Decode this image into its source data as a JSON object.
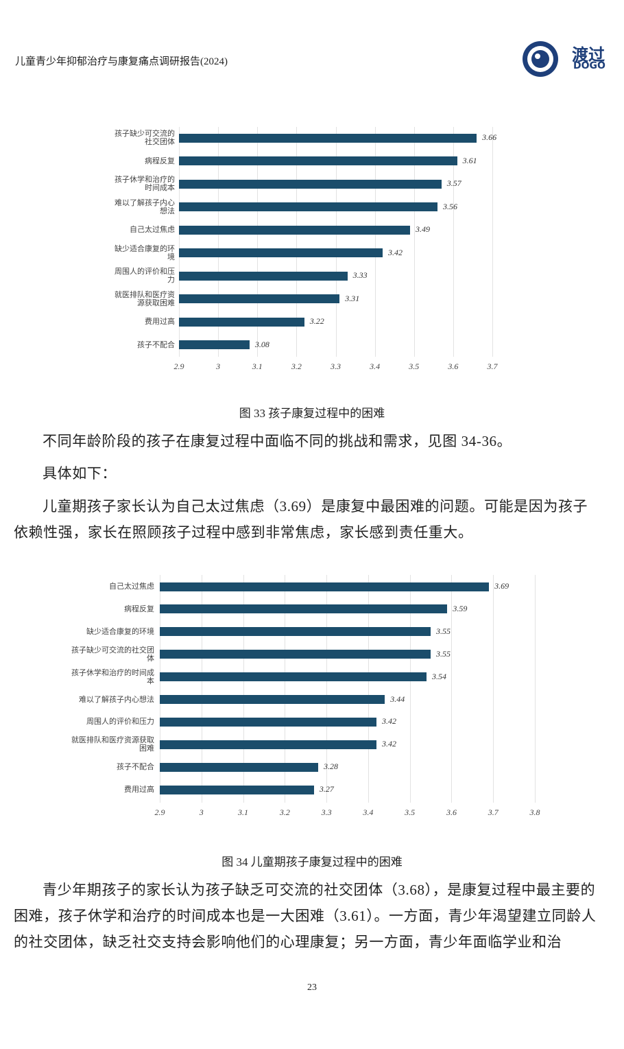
{
  "header": {
    "title": "儿童青少年抑郁治疗与康复痛点调研报告(2024)",
    "logo_text": "渡过",
    "logo_sub": "DOGO"
  },
  "charts": [
    {
      "type": "bar",
      "orientation": "horizontal",
      "color": "#1b4d6b",
      "grid": true,
      "categories": [
        "孩子缺少可交流的社交团体",
        "病程反复",
        "孩子休学和治疗的时间成本",
        "难以了解孩子内心想法",
        "自己太过焦虑",
        "缺少适合康复的环境",
        "周围人的评价和压力",
        "就医排队和医疗资源获取困难",
        "费用过高",
        "孩子不配合"
      ],
      "values": [
        3.66,
        3.61,
        3.57,
        3.56,
        3.49,
        3.42,
        3.33,
        3.31,
        3.22,
        3.08
      ],
      "xlim": [
        2.9,
        3.7
      ],
      "xticks": [
        2.9,
        3,
        3.1,
        3.2,
        3.3,
        3.4,
        3.5,
        3.6,
        3.7
      ]
    },
    {
      "type": "bar",
      "orientation": "horizontal",
      "color": "#1b4d6b",
      "grid": true,
      "categories": [
        "自己太过焦虑",
        "病程反复",
        "缺少适合康复的环境",
        "孩子缺少可交流的社交团体",
        "孩子休学和治疗的时间成本",
        "难以了解孩子内心想法",
        "周围人的评价和压力",
        "就医排队和医疗资源获取困难",
        "孩子不配合",
        "费用过高"
      ],
      "values": [
        3.69,
        3.59,
        3.55,
        3.55,
        3.54,
        3.44,
        3.42,
        3.42,
        3.28,
        3.27
      ],
      "xlim": [
        2.9,
        3.8
      ],
      "xticks": [
        2.9,
        3,
        3.1,
        3.2,
        3.3,
        3.4,
        3.5,
        3.6,
        3.7,
        3.8
      ]
    }
  ],
  "captions": [
    "图 33  孩子康复过程中的困难",
    "图 34 儿童期孩子康复过程中的困难"
  ],
  "paragraphs": [
    "不同年龄阶段的孩子在康复过程中面临不同的挑战和需求，见图 34-36。",
    "具体如下：",
    "儿童期孩子家长认为自己太过焦虑（3.69）是康复中最困难的问题。可能是因为孩子依赖性强，家长在照顾孩子过程中感到非常焦虑，家长感到责任重大。",
    "青少年期孩子的家长认为孩子缺乏可交流的社交团体（3.68），是康复过程中最主要的困难，孩子休学和治疗的时间成本也是一大困难（3.61）。一方面，青少年渴望建立同龄人的社交团体，缺乏社交支持会影响他们的心理康复；另一方面，青少年面临学业和治"
  ],
  "page_number": "23"
}
